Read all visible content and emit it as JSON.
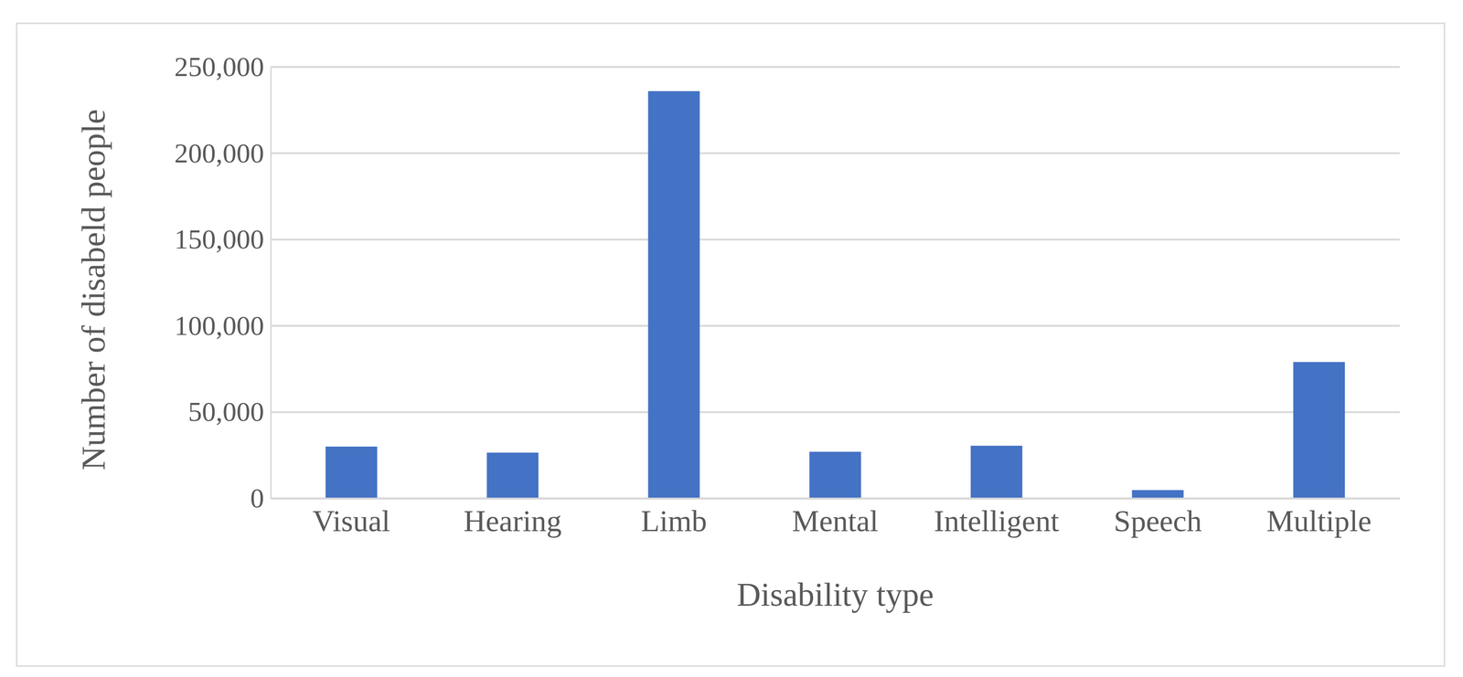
{
  "chart_data": {
    "type": "bar",
    "x_label": "Disability type",
    "y_label": "Number of disabeld people",
    "categories": [
      "Visual",
      "Hearing",
      "Limb",
      "Mental",
      "Intelligent",
      "Speech",
      "Multiple"
    ],
    "values": [
      30000,
      26500,
      236000,
      27000,
      30500,
      4800,
      79000
    ],
    "color": "#4472c4",
    "ylim": [
      0,
      250000
    ],
    "yticks": [
      0,
      {
        "value": 50000,
        "label": "50,000"
      },
      {
        "value": 100000,
        "label": "100,000"
      },
      {
        "value": 150000,
        "label": "150,000"
      },
      {
        "value": 200000,
        "label": "200,000"
      },
      {
        "value": 250000,
        "label": "250,000"
      }
    ],
    "grid": true
  }
}
